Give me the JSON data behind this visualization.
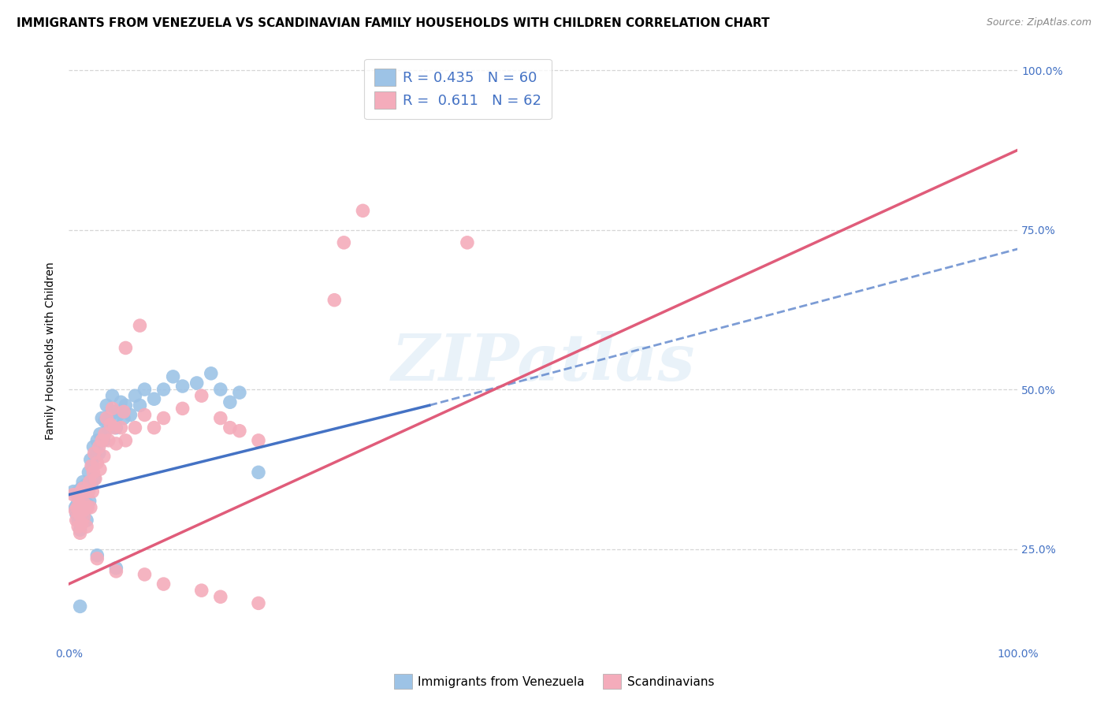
{
  "title": "IMMIGRANTS FROM VENEZUELA VS SCANDINAVIAN FAMILY HOUSEHOLDS WITH CHILDREN CORRELATION CHART",
  "source": "Source: ZipAtlas.com",
  "ylabel": "Family Households with Children",
  "xlabel": "",
  "xlim": [
    0.0,
    1.0
  ],
  "ylim": [
    0.1,
    1.02
  ],
  "xtick_positions": [
    0.0,
    1.0
  ],
  "xtick_labels": [
    "0.0%",
    "100.0%"
  ],
  "ytick_positions": [
    0.25,
    0.5,
    0.75,
    1.0
  ],
  "ytick_labels": [
    "25.0%",
    "50.0%",
    "75.0%",
    "100.0%"
  ],
  "watermark": "ZIPatlas",
  "legend_label1": "Immigrants from Venezuela",
  "legend_label2": "Scandinavians",
  "blue_color": "#4472c4",
  "pink_color": "#e05c7a",
  "blue_scatter_color": "#9dc3e6",
  "pink_scatter_color": "#f4acbb",
  "blue_line_solid": {
    "x0": 0.0,
    "y0": 0.335,
    "x1": 0.38,
    "y1": 0.475
  },
  "blue_line_dashed": {
    "x0": 0.38,
    "y0": 0.475,
    "x1": 1.0,
    "y1": 0.72
  },
  "pink_line": {
    "x0": 0.0,
    "y0": 0.195,
    "x1": 1.0,
    "y1": 0.875
  },
  "blue_scatter": [
    [
      0.005,
      0.34
    ],
    [
      0.007,
      0.315
    ],
    [
      0.008,
      0.305
    ],
    [
      0.009,
      0.32
    ],
    [
      0.01,
      0.295
    ],
    [
      0.01,
      0.34
    ],
    [
      0.011,
      0.31
    ],
    [
      0.012,
      0.28
    ],
    [
      0.012,
      0.325
    ],
    [
      0.013,
      0.345
    ],
    [
      0.014,
      0.295
    ],
    [
      0.015,
      0.315
    ],
    [
      0.015,
      0.355
    ],
    [
      0.016,
      0.305
    ],
    [
      0.017,
      0.335
    ],
    [
      0.018,
      0.35
    ],
    [
      0.019,
      0.295
    ],
    [
      0.02,
      0.32
    ],
    [
      0.02,
      0.345
    ],
    [
      0.021,
      0.37
    ],
    [
      0.022,
      0.325
    ],
    [
      0.023,
      0.39
    ],
    [
      0.024,
      0.35
    ],
    [
      0.025,
      0.38
    ],
    [
      0.026,
      0.41
    ],
    [
      0.027,
      0.36
    ],
    [
      0.028,
      0.395
    ],
    [
      0.03,
      0.42
    ],
    [
      0.032,
      0.4
    ],
    [
      0.033,
      0.43
    ],
    [
      0.035,
      0.455
    ],
    [
      0.037,
      0.42
    ],
    [
      0.038,
      0.45
    ],
    [
      0.04,
      0.475
    ],
    [
      0.042,
      0.44
    ],
    [
      0.044,
      0.46
    ],
    [
      0.046,
      0.49
    ],
    [
      0.048,
      0.465
    ],
    [
      0.05,
      0.44
    ],
    [
      0.052,
      0.46
    ],
    [
      0.055,
      0.48
    ],
    [
      0.058,
      0.455
    ],
    [
      0.06,
      0.475
    ],
    [
      0.065,
      0.46
    ],
    [
      0.07,
      0.49
    ],
    [
      0.075,
      0.475
    ],
    [
      0.08,
      0.5
    ],
    [
      0.09,
      0.485
    ],
    [
      0.1,
      0.5
    ],
    [
      0.11,
      0.52
    ],
    [
      0.12,
      0.505
    ],
    [
      0.135,
      0.51
    ],
    [
      0.15,
      0.525
    ],
    [
      0.16,
      0.5
    ],
    [
      0.17,
      0.48
    ],
    [
      0.18,
      0.495
    ],
    [
      0.2,
      0.37
    ],
    [
      0.03,
      0.24
    ],
    [
      0.05,
      0.22
    ],
    [
      0.012,
      0.16
    ]
  ],
  "pink_scatter": [
    [
      0.005,
      0.335
    ],
    [
      0.007,
      0.31
    ],
    [
      0.008,
      0.295
    ],
    [
      0.009,
      0.315
    ],
    [
      0.01,
      0.285
    ],
    [
      0.01,
      0.33
    ],
    [
      0.011,
      0.305
    ],
    [
      0.012,
      0.275
    ],
    [
      0.012,
      0.32
    ],
    [
      0.013,
      0.34
    ],
    [
      0.014,
      0.29
    ],
    [
      0.015,
      0.31
    ],
    [
      0.015,
      0.345
    ],
    [
      0.016,
      0.3
    ],
    [
      0.017,
      0.32
    ],
    [
      0.018,
      0.34
    ],
    [
      0.019,
      0.285
    ],
    [
      0.02,
      0.315
    ],
    [
      0.021,
      0.34
    ],
    [
      0.022,
      0.355
    ],
    [
      0.023,
      0.315
    ],
    [
      0.024,
      0.38
    ],
    [
      0.025,
      0.34
    ],
    [
      0.026,
      0.37
    ],
    [
      0.027,
      0.4
    ],
    [
      0.028,
      0.36
    ],
    [
      0.03,
      0.385
    ],
    [
      0.032,
      0.41
    ],
    [
      0.033,
      0.375
    ],
    [
      0.035,
      0.42
    ],
    [
      0.037,
      0.395
    ],
    [
      0.038,
      0.43
    ],
    [
      0.04,
      0.455
    ],
    [
      0.042,
      0.42
    ],
    [
      0.044,
      0.445
    ],
    [
      0.046,
      0.47
    ],
    [
      0.048,
      0.44
    ],
    [
      0.05,
      0.415
    ],
    [
      0.055,
      0.44
    ],
    [
      0.058,
      0.465
    ],
    [
      0.06,
      0.42
    ],
    [
      0.07,
      0.44
    ],
    [
      0.08,
      0.46
    ],
    [
      0.09,
      0.44
    ],
    [
      0.1,
      0.455
    ],
    [
      0.12,
      0.47
    ],
    [
      0.14,
      0.49
    ],
    [
      0.16,
      0.455
    ],
    [
      0.17,
      0.44
    ],
    [
      0.18,
      0.435
    ],
    [
      0.2,
      0.42
    ],
    [
      0.03,
      0.235
    ],
    [
      0.05,
      0.215
    ],
    [
      0.08,
      0.21
    ],
    [
      0.1,
      0.195
    ],
    [
      0.14,
      0.185
    ],
    [
      0.16,
      0.175
    ],
    [
      0.2,
      0.165
    ],
    [
      0.06,
      0.565
    ],
    [
      0.075,
      0.6
    ],
    [
      0.28,
      0.64
    ],
    [
      0.29,
      0.73
    ],
    [
      0.31,
      0.78
    ],
    [
      0.42,
      0.73
    ]
  ],
  "grid_color": "#cccccc",
  "background_color": "#ffffff",
  "title_fontsize": 11,
  "axis_label_fontsize": 10,
  "tick_fontsize": 10,
  "label_color": "#4472c4"
}
